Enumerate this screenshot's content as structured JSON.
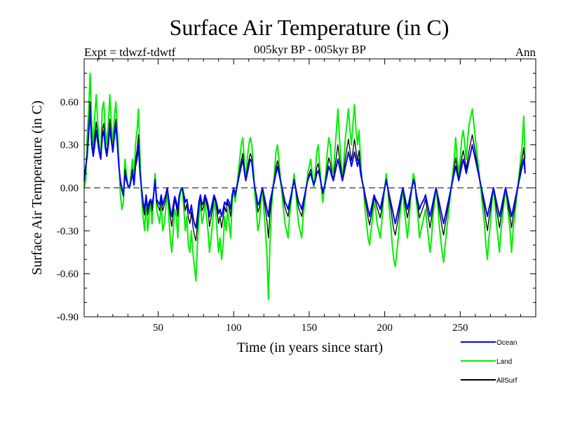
{
  "chart_data": {
    "type": "line",
    "title": "Surface Air Temperature (in C)",
    "subtitle": "005kyr BP - 005kyr BP",
    "experiment": "Expt = tdwzf-tdwtf",
    "season": "Ann",
    "xlabel": "Time (in years since start)",
    "ylabel": "Surface Air Temperature (in C)",
    "xlim": [
      1,
      300
    ],
    "ylim": [
      -0.9,
      0.9
    ],
    "x_ticks": [
      50,
      100,
      150,
      200,
      250
    ],
    "x_tick_labels": [
      "50",
      "100",
      "150",
      "200",
      "250"
    ],
    "y_ticks": [
      0.6,
      0.3,
      0.0,
      -0.3,
      -0.6,
      -0.9
    ],
    "y_tick_labels": [
      "0.60",
      "0.30",
      "0.00",
      "-0.30",
      "-0.60",
      "-0.90"
    ],
    "zero_line": "dashed",
    "grid": false,
    "legend_position": "bottom-right",
    "x_step": 1,
    "series": [
      {
        "name": "Ocean",
        "color": "#0000ff",
        "values": [
          0.05,
          0.15,
          0.22,
          0.38,
          0.55,
          0.3,
          0.22,
          0.3,
          0.4,
          0.32,
          0.25,
          0.2,
          0.35,
          0.4,
          0.28,
          0.22,
          0.3,
          0.42,
          0.33,
          0.25,
          0.36,
          0.44,
          0.3,
          0.15,
          0.05,
          0.0,
          -0.05,
          0.1,
          0.05,
          0.02,
          0.0,
          0.05,
          0.1,
          0.02,
          0.15,
          0.2,
          0.3,
          0.1,
          0.0,
          -0.1,
          -0.15,
          -0.05,
          -0.15,
          -0.1,
          -0.08,
          -0.12,
          -0.05,
          0.05,
          -0.08,
          -0.1,
          -0.12,
          -0.05,
          -0.12,
          -0.08,
          -0.05,
          0.0,
          -0.08,
          -0.15,
          -0.2,
          -0.12,
          -0.06,
          -0.1,
          -0.15,
          -0.05,
          -0.02,
          0.0,
          -0.05,
          -0.1,
          -0.08,
          -0.15,
          -0.18,
          -0.12,
          -0.2,
          -0.25,
          -0.28,
          -0.2,
          -0.1,
          -0.05,
          -0.12,
          -0.1,
          -0.05,
          -0.08,
          -0.12,
          -0.2,
          -0.15,
          -0.1,
          -0.05,
          -0.08,
          -0.12,
          -0.18,
          -0.15,
          -0.2,
          -0.15,
          -0.1,
          -0.12,
          -0.08,
          -0.1,
          -0.15,
          -0.05,
          0.0,
          -0.05,
          0.0,
          0.05,
          0.1,
          0.15,
          0.2,
          0.12,
          0.05,
          0.1,
          0.15,
          0.2,
          0.18,
          0.08,
          0.0,
          -0.05,
          -0.12,
          -0.1,
          -0.05,
          0.0,
          -0.05,
          -0.1,
          -0.15,
          -0.2,
          -0.1,
          -0.05,
          0.0,
          0.05,
          0.1,
          0.15,
          0.1,
          0.05,
          0.0,
          -0.05,
          -0.1,
          -0.12,
          -0.15,
          -0.1,
          -0.05,
          0.0,
          0.05,
          0.0,
          -0.05,
          -0.1,
          -0.12,
          -0.15,
          -0.1,
          -0.05,
          0.0,
          0.05,
          0.08,
          0.1,
          0.06,
          0.02,
          0.05,
          0.1,
          0.12,
          0.08,
          0.02,
          -0.02,
          0.0,
          0.05,
          0.1,
          0.15,
          0.12,
          0.08,
          0.05,
          0.1,
          0.15,
          0.2,
          0.15,
          0.1,
          0.05,
          0.1,
          0.15,
          0.2,
          0.25,
          0.2,
          0.15,
          0.2,
          0.25,
          0.2,
          0.15,
          0.2,
          0.1,
          0.05,
          0.0,
          -0.05,
          -0.1,
          -0.15,
          -0.2,
          -0.15,
          -0.1,
          -0.05,
          -0.08,
          -0.1,
          -0.12,
          -0.15,
          -0.1,
          -0.05,
          0.0,
          0.05,
          0.0,
          -0.05,
          -0.1,
          -0.15,
          -0.2,
          -0.25,
          -0.2,
          -0.15,
          -0.1,
          -0.05,
          0.0,
          -0.05,
          -0.1,
          -0.15,
          -0.1,
          -0.05,
          0.0,
          0.05,
          0.02,
          -0.05,
          -0.1,
          -0.15,
          -0.12,
          -0.1,
          -0.08,
          -0.05,
          -0.1,
          -0.15,
          -0.2,
          -0.15,
          -0.1,
          -0.05,
          0.0,
          -0.05,
          -0.1,
          -0.15,
          -0.2,
          -0.25,
          -0.2,
          -0.15,
          -0.1,
          -0.05,
          0.0,
          0.05,
          0.1,
          0.15,
          0.1,
          0.05,
          0.1,
          0.15,
          0.2,
          0.15,
          0.1,
          0.15,
          0.2,
          0.25,
          0.3,
          0.25,
          0.2,
          0.15,
          0.1,
          0.05,
          0.0,
          -0.05,
          -0.1,
          -0.15,
          -0.2,
          -0.15,
          -0.1,
          -0.05,
          0.0,
          -0.05,
          -0.1,
          -0.15,
          -0.2,
          -0.15,
          -0.1,
          -0.05,
          0.0,
          -0.05,
          -0.1,
          -0.15,
          -0.2,
          -0.15,
          -0.1,
          -0.05,
          0.0,
          0.05,
          0.1,
          0.15,
          0.2,
          0.1
        ]
      },
      {
        "name": "Land",
        "color": "#00ee00",
        "values": [
          0.0,
          0.05,
          0.35,
          0.55,
          0.8,
          0.45,
          0.3,
          0.5,
          0.65,
          0.45,
          0.3,
          0.25,
          0.55,
          0.6,
          0.4,
          0.3,
          0.45,
          0.65,
          0.45,
          0.3,
          0.5,
          0.6,
          0.4,
          0.2,
          -0.05,
          -0.15,
          -0.1,
          0.2,
          0.1,
          0.0,
          0.0,
          0.1,
          0.2,
          0.05,
          0.3,
          0.4,
          0.55,
          0.2,
          -0.05,
          -0.2,
          -0.3,
          -0.1,
          -0.3,
          -0.2,
          -0.1,
          -0.25,
          -0.05,
          0.1,
          -0.15,
          -0.2,
          -0.25,
          -0.1,
          -0.3,
          -0.25,
          -0.15,
          0.0,
          -0.2,
          -0.35,
          -0.45,
          -0.3,
          -0.15,
          -0.2,
          -0.35,
          -0.1,
          0.0,
          0.0,
          -0.15,
          -0.3,
          -0.2,
          -0.4,
          -0.45,
          -0.3,
          -0.45,
          -0.55,
          -0.65,
          -0.4,
          -0.2,
          -0.1,
          -0.25,
          -0.2,
          -0.1,
          -0.2,
          -0.3,
          -0.45,
          -0.35,
          -0.25,
          -0.1,
          -0.15,
          -0.3,
          -0.45,
          -0.35,
          -0.5,
          -0.4,
          -0.2,
          -0.3,
          -0.15,
          -0.25,
          -0.35,
          -0.1,
          0.0,
          -0.1,
          0.0,
          0.1,
          0.2,
          0.3,
          0.35,
          0.2,
          0.05,
          0.2,
          0.3,
          0.35,
          0.3,
          0.15,
          -0.05,
          -0.15,
          -0.3,
          -0.25,
          -0.1,
          0.0,
          -0.15,
          -0.3,
          -0.45,
          -0.78,
          -0.4,
          -0.15,
          0.0,
          0.1,
          0.25,
          0.3,
          0.2,
          0.05,
          -0.05,
          -0.15,
          -0.25,
          -0.3,
          -0.35,
          -0.2,
          -0.1,
          0.0,
          0.1,
          0.0,
          -0.15,
          -0.25,
          -0.3,
          -0.35,
          -0.2,
          -0.1,
          0.0,
          0.1,
          0.15,
          0.2,
          0.1,
          0.0,
          0.1,
          0.25,
          0.3,
          0.15,
          0.0,
          -0.1,
          0.0,
          0.1,
          0.25,
          0.35,
          0.3,
          0.15,
          0.1,
          0.25,
          0.4,
          0.55,
          0.35,
          0.2,
          0.05,
          0.2,
          0.35,
          0.45,
          0.55,
          0.4,
          0.3,
          0.45,
          0.58,
          0.4,
          0.3,
          0.4,
          0.2,
          0.05,
          0.0,
          -0.15,
          -0.25,
          -0.35,
          -0.4,
          -0.3,
          -0.2,
          -0.1,
          -0.15,
          -0.25,
          -0.3,
          -0.35,
          -0.25,
          -0.1,
          0.0,
          0.1,
          0.0,
          -0.15,
          -0.25,
          -0.4,
          -0.5,
          -0.55,
          -0.45,
          -0.35,
          -0.2,
          -0.1,
          0.0,
          -0.15,
          -0.25,
          -0.35,
          -0.25,
          -0.1,
          0.0,
          0.1,
          0.05,
          -0.1,
          -0.2,
          -0.35,
          -0.3,
          -0.25,
          -0.2,
          -0.15,
          -0.25,
          -0.35,
          -0.45,
          -0.35,
          -0.2,
          -0.1,
          0.0,
          -0.1,
          -0.25,
          -0.35,
          -0.45,
          -0.52,
          -0.4,
          -0.3,
          -0.2,
          -0.1,
          0.0,
          0.1,
          0.2,
          0.35,
          0.2,
          0.1,
          0.2,
          0.35,
          0.4,
          0.3,
          0.2,
          0.35,
          0.45,
          0.5,
          0.55,
          0.45,
          0.35,
          0.25,
          0.15,
          0.05,
          -0.05,
          -0.15,
          -0.25,
          -0.4,
          -0.5,
          -0.35,
          -0.25,
          -0.1,
          0.0,
          -0.1,
          -0.25,
          -0.35,
          -0.45,
          -0.3,
          -0.2,
          -0.1,
          0.0,
          -0.1,
          -0.2,
          -0.3,
          -0.45,
          -0.3,
          -0.2,
          -0.1,
          0.0,
          0.1,
          0.2,
          0.3,
          0.5,
          0.2
        ]
      },
      {
        "name": "AllSurf",
        "color": "#000000",
        "values": [
          0.04,
          0.12,
          0.25,
          0.42,
          0.6,
          0.34,
          0.24,
          0.36,
          0.46,
          0.36,
          0.27,
          0.21,
          0.4,
          0.45,
          0.31,
          0.24,
          0.34,
          0.48,
          0.36,
          0.26,
          0.4,
          0.48,
          0.33,
          0.16,
          0.03,
          -0.02,
          -0.06,
          0.13,
          0.07,
          0.02,
          0.0,
          0.06,
          0.13,
          0.03,
          0.19,
          0.26,
          0.37,
          0.13,
          0.0,
          -0.13,
          -0.19,
          -0.06,
          -0.19,
          -0.13,
          -0.08,
          -0.16,
          -0.05,
          0.06,
          -0.1,
          -0.13,
          -0.16,
          -0.07,
          -0.16,
          -0.12,
          -0.08,
          0.0,
          -0.11,
          -0.2,
          -0.27,
          -0.17,
          -0.08,
          -0.13,
          -0.2,
          -0.06,
          -0.02,
          0.0,
          -0.08,
          -0.16,
          -0.11,
          -0.21,
          -0.25,
          -0.17,
          -0.27,
          -0.33,
          -0.37,
          -0.26,
          -0.13,
          -0.07,
          -0.16,
          -0.13,
          -0.07,
          -0.11,
          -0.16,
          -0.27,
          -0.21,
          -0.14,
          -0.07,
          -0.1,
          -0.16,
          -0.25,
          -0.2,
          -0.28,
          -0.21,
          -0.13,
          -0.17,
          -0.1,
          -0.14,
          -0.2,
          -0.07,
          0.0,
          -0.06,
          0.0,
          0.06,
          0.13,
          0.19,
          0.24,
          0.14,
          0.05,
          0.13,
          0.19,
          0.24,
          0.21,
          0.1,
          0.0,
          -0.07,
          -0.17,
          -0.14,
          -0.06,
          0.0,
          -0.08,
          -0.15,
          -0.23,
          -0.35,
          -0.18,
          -0.08,
          0.0,
          0.06,
          0.14,
          0.19,
          0.13,
          0.06,
          0.0,
          -0.08,
          -0.14,
          -0.17,
          -0.2,
          -0.13,
          -0.07,
          0.0,
          0.06,
          0.0,
          -0.08,
          -0.14,
          -0.17,
          -0.2,
          -0.13,
          -0.07,
          0.0,
          0.06,
          0.1,
          0.13,
          0.07,
          0.02,
          0.06,
          0.14,
          0.17,
          0.1,
          0.02,
          -0.04,
          0.0,
          0.06,
          0.14,
          0.21,
          0.17,
          0.1,
          0.06,
          0.14,
          0.22,
          0.3,
          0.21,
          0.13,
          0.06,
          0.13,
          0.21,
          0.28,
          0.34,
          0.26,
          0.19,
          0.26,
          0.34,
          0.26,
          0.19,
          0.26,
          0.13,
          0.06,
          0.0,
          -0.08,
          -0.14,
          -0.21,
          -0.26,
          -0.2,
          -0.13,
          -0.07,
          -0.1,
          -0.14,
          -0.17,
          -0.21,
          -0.15,
          -0.07,
          0.0,
          0.06,
          0.0,
          -0.08,
          -0.14,
          -0.22,
          -0.29,
          -0.33,
          -0.27,
          -0.21,
          -0.13,
          -0.07,
          0.0,
          -0.08,
          -0.15,
          -0.21,
          -0.15,
          -0.07,
          0.0,
          0.06,
          0.03,
          -0.07,
          -0.13,
          -0.21,
          -0.18,
          -0.15,
          -0.12,
          -0.08,
          -0.15,
          -0.21,
          -0.28,
          -0.21,
          -0.13,
          -0.07,
          0.0,
          -0.07,
          -0.15,
          -0.21,
          -0.28,
          -0.33,
          -0.26,
          -0.2,
          -0.13,
          -0.07,
          0.0,
          0.06,
          0.13,
          0.21,
          0.13,
          0.06,
          0.13,
          0.21,
          0.26,
          0.2,
          0.13,
          0.2,
          0.27,
          0.32,
          0.37,
          0.31,
          0.25,
          0.18,
          0.12,
          0.06,
          0.0,
          -0.08,
          -0.15,
          -0.23,
          -0.3,
          -0.22,
          -0.15,
          -0.07,
          0.0,
          -0.07,
          -0.15,
          -0.21,
          -0.28,
          -0.2,
          -0.14,
          -0.07,
          0.0,
          -0.07,
          -0.14,
          -0.2,
          -0.28,
          -0.2,
          -0.14,
          -0.07,
          0.0,
          0.07,
          0.14,
          0.2,
          0.28,
          0.13
        ]
      }
    ]
  }
}
